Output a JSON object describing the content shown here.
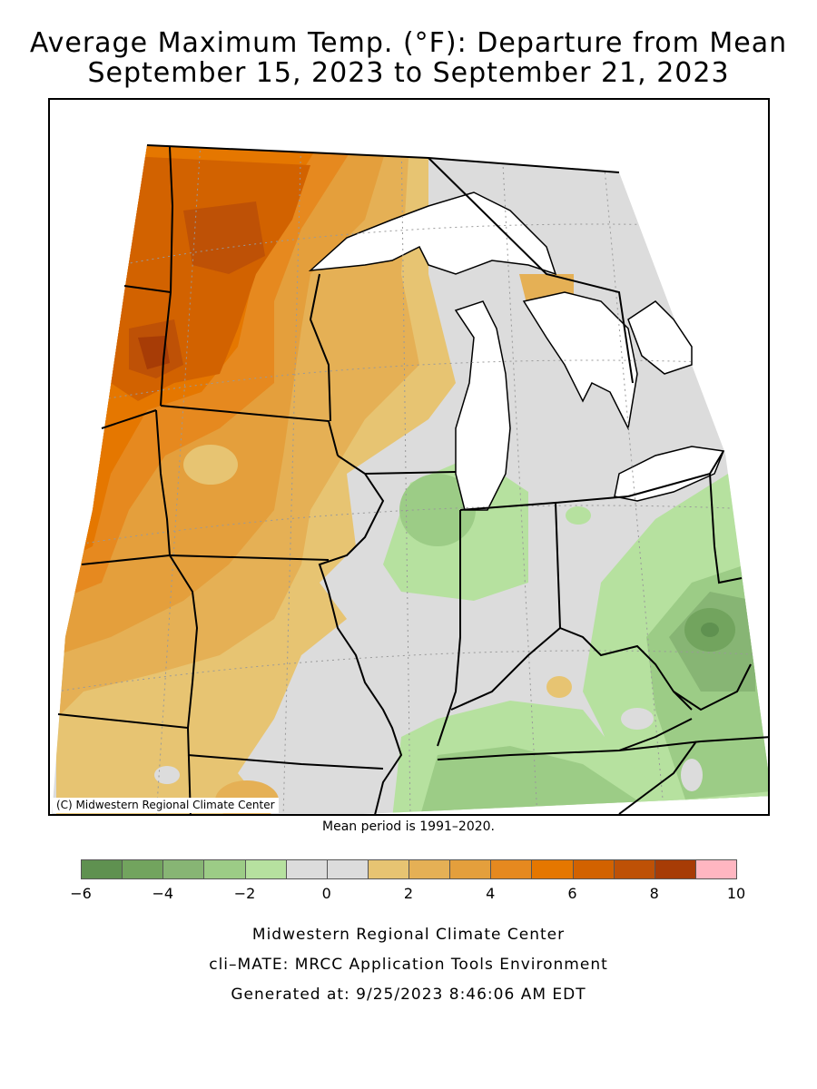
{
  "title": {
    "line1": "Average Maximum Temp. (°F): Departure from Mean",
    "line2": "September 15, 2023 to September 21, 2023"
  },
  "map": {
    "copyright": "(C) Midwestern Regional Climate Center",
    "mean_period": "Mean period is 1991–2020."
  },
  "legend": {
    "colors": [
      "#5f9150",
      "#72a45e",
      "#87b574",
      "#9ccc86",
      "#b6e19f",
      "#dcdcdc",
      "#dcdcdc",
      "#e7c472",
      "#e5b055",
      "#e49f3c",
      "#e6891f",
      "#e57700",
      "#d26200",
      "#be5106",
      "#a73c06",
      "#ffb6c1"
    ],
    "tick_labels": [
      "−6",
      "−4",
      "−2",
      "0",
      "2",
      "4",
      "6",
      "8",
      "10"
    ]
  },
  "footer": {
    "line1": "Midwestern Regional Climate Center",
    "line2": "cli–MATE: MRCC Application Tools Environment",
    "line3": "Generated at: 9/25/2023 8:46:06 AM EDT"
  }
}
